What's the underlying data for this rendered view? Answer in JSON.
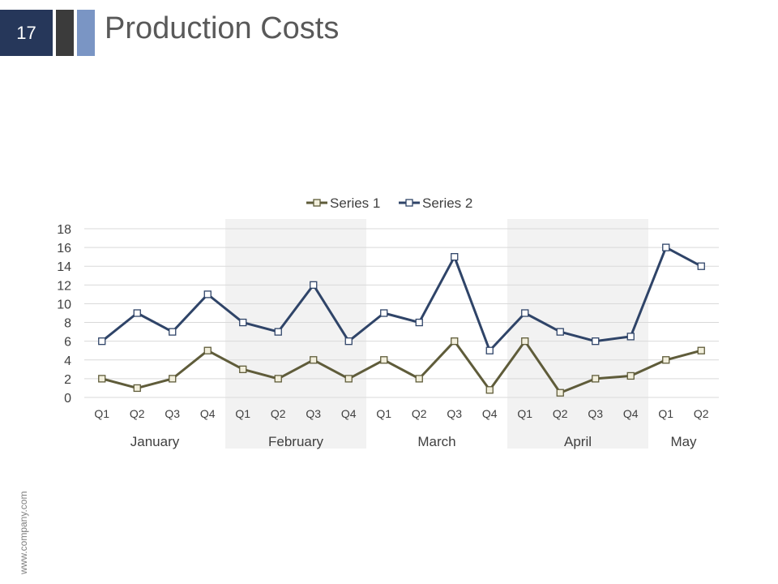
{
  "slide": {
    "number": "17",
    "title": "Production Costs",
    "website": "www.company.com"
  },
  "colors": {
    "series1": "#5f5c3a",
    "series2": "#2f4468",
    "marker_fill": "#ffffff",
    "marker_fill_s1": "#f2efdc",
    "band": "#f2f2f2",
    "grid": "#d9d9d9",
    "text": "#404040"
  },
  "chart_data": {
    "type": "line",
    "title": "",
    "xlabel": "",
    "ylabel": "",
    "ylim": [
      0,
      18
    ],
    "yticks": [
      0,
      2,
      4,
      6,
      8,
      10,
      12,
      14,
      16,
      18
    ],
    "grid": true,
    "legend": "top-center",
    "categories": [
      "Q1",
      "Q2",
      "Q3",
      "Q4",
      "Q1",
      "Q2",
      "Q3",
      "Q4",
      "Q1",
      "Q2",
      "Q3",
      "Q4",
      "Q1",
      "Q2",
      "Q3",
      "Q4",
      "Q1",
      "Q2"
    ],
    "groups": [
      {
        "label": "January",
        "count": 4,
        "shaded": false
      },
      {
        "label": "February",
        "count": 4,
        "shaded": true
      },
      {
        "label": "March",
        "count": 4,
        "shaded": false
      },
      {
        "label": "April",
        "count": 4,
        "shaded": true
      },
      {
        "label": "May",
        "count": 2,
        "shaded": false
      }
    ],
    "series": [
      {
        "name": "Series 1",
        "values": [
          2,
          1,
          2,
          5,
          3,
          2,
          4,
          2,
          4,
          2,
          6,
          0.8,
          6,
          0.5,
          2,
          2.3,
          4,
          5
        ]
      },
      {
        "name": "Series 2",
        "values": [
          6,
          9,
          7,
          11,
          8,
          7,
          12,
          6,
          9,
          8,
          15,
          5,
          9,
          7,
          6,
          6.5,
          16,
          14
        ]
      }
    ]
  }
}
